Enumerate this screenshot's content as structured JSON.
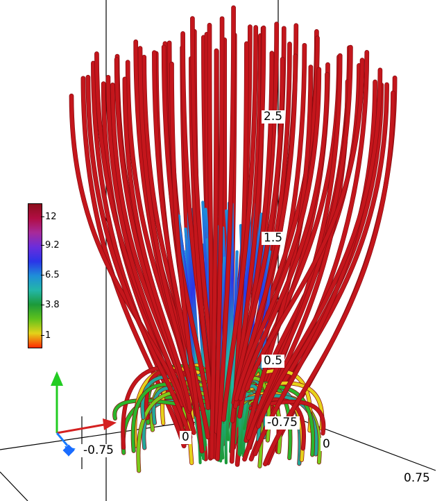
{
  "axis_labels": {
    "z_top": "2.5",
    "z_mid": "1.5",
    "z_low": "0.5",
    "y_neg": "-0.75",
    "y_zero": "0",
    "x_neg": "-0.75",
    "x_zero": "0",
    "x_pos": "0.75"
  },
  "legend": {
    "ticks": [
      "12",
      "9.2",
      "6.5",
      "3.8",
      "1"
    ],
    "gradient": [
      "#8b0f1c",
      "#b10d43",
      "#a72a9a",
      "#6a2ddc",
      "#2a35e8",
      "#1f8ed8",
      "#23b6a8",
      "#1c9a3a",
      "#5fc11c",
      "#e3d21a",
      "#ff2a00"
    ]
  },
  "colors": {
    "streamline_outer": "#c4161c",
    "streamline_dark": "#8a0b10",
    "axis_x": "#d42020",
    "axis_y": "#1a7cff",
    "axis_z": "#22cc22"
  },
  "icons": {
    "orientation": "xyz-triad-icon"
  }
}
